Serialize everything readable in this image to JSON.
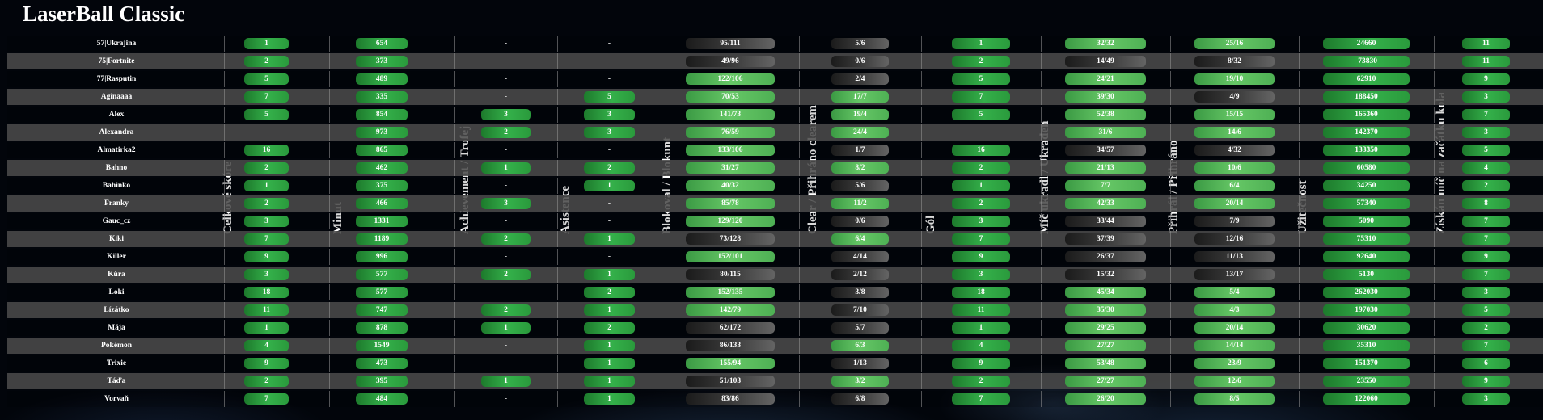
{
  "title": "LaserBall Classic",
  "colors": {
    "green": "#2a9a3c",
    "light_green": "#66c766",
    "dark": "#3a3a3a",
    "row_alt": "#4a4a4a"
  },
  "columns": [
    "Celkové skóre",
    "Minut",
    "Achievement / Trofej",
    "Asistence",
    "Blokoval / Blokunt",
    "Clear / Přihráno clearem",
    "Gól",
    "Míč ukradl / Ukraden",
    "Přihrál / Přihráno",
    "Užitečnost",
    "Získán míč na začátku kola"
  ],
  "rows": [
    {
      "name": "57|Ukrajina",
      "cells": [
        [
          "1",
          "g"
        ],
        [
          "654",
          "g"
        ],
        [
          "-",
          "dash"
        ],
        [
          "-",
          "dash"
        ],
        [
          "95/111",
          "dk"
        ],
        [
          "5/6",
          "dk"
        ],
        [
          "1",
          "g"
        ],
        [
          "32/32",
          "lg"
        ],
        [
          "25/16",
          "lg"
        ],
        [
          "24660",
          "g"
        ],
        [
          "11",
          "g"
        ]
      ]
    },
    {
      "name": "75|Fortnite",
      "cells": [
        [
          "2",
          "g"
        ],
        [
          "373",
          "g"
        ],
        [
          "-",
          "dash"
        ],
        [
          "-",
          "dash"
        ],
        [
          "49/96",
          "dk"
        ],
        [
          "0/6",
          "dk"
        ],
        [
          "2",
          "g"
        ],
        [
          "14/49",
          "dk"
        ],
        [
          "8/32",
          "dk"
        ],
        [
          "-73830",
          "g"
        ],
        [
          "11",
          "g"
        ]
      ]
    },
    {
      "name": "77|Rasputin",
      "cells": [
        [
          "5",
          "g"
        ],
        [
          "489",
          "g"
        ],
        [
          "-",
          "dash"
        ],
        [
          "-",
          "dash"
        ],
        [
          "122/106",
          "lg"
        ],
        [
          "2/4",
          "dk"
        ],
        [
          "5",
          "g"
        ],
        [
          "24/21",
          "lg"
        ],
        [
          "19/10",
          "lg"
        ],
        [
          "62910",
          "g"
        ],
        [
          "9",
          "g"
        ]
      ]
    },
    {
      "name": "Aginaaaa",
      "cells": [
        [
          "7",
          "g"
        ],
        [
          "335",
          "g"
        ],
        [
          "-",
          "dash"
        ],
        [
          "5",
          "g"
        ],
        [
          "70/53",
          "lg"
        ],
        [
          "17/7",
          "lg"
        ],
        [
          "7",
          "g"
        ],
        [
          "39/30",
          "lg"
        ],
        [
          "4/9",
          "dk"
        ],
        [
          "188450",
          "g"
        ],
        [
          "3",
          "g"
        ]
      ]
    },
    {
      "name": "Alex",
      "cells": [
        [
          "5",
          "g"
        ],
        [
          "854",
          "g"
        ],
        [
          "3",
          "g"
        ],
        [
          "3",
          "g"
        ],
        [
          "141/73",
          "lg"
        ],
        [
          "19/4",
          "lg"
        ],
        [
          "5",
          "g"
        ],
        [
          "52/38",
          "lg"
        ],
        [
          "15/15",
          "lg"
        ],
        [
          "165360",
          "g"
        ],
        [
          "7",
          "g"
        ]
      ]
    },
    {
      "name": "Alexandra",
      "cells": [
        [
          "-",
          "dash"
        ],
        [
          "973",
          "g"
        ],
        [
          "2",
          "g"
        ],
        [
          "3",
          "g"
        ],
        [
          "76/59",
          "lg"
        ],
        [
          "24/4",
          "lg"
        ],
        [
          "-",
          "dash"
        ],
        [
          "31/6",
          "lg"
        ],
        [
          "14/6",
          "lg"
        ],
        [
          "142370",
          "g"
        ],
        [
          "3",
          "g"
        ]
      ]
    },
    {
      "name": "Almatirka2",
      "cells": [
        [
          "16",
          "g"
        ],
        [
          "865",
          "g"
        ],
        [
          "-",
          "dash"
        ],
        [
          "-",
          "dash"
        ],
        [
          "133/106",
          "lg"
        ],
        [
          "1/7",
          "dk"
        ],
        [
          "16",
          "g"
        ],
        [
          "34/57",
          "dk"
        ],
        [
          "4/32",
          "dk"
        ],
        [
          "133350",
          "g"
        ],
        [
          "5",
          "g"
        ]
      ]
    },
    {
      "name": "Bahno",
      "cells": [
        [
          "2",
          "g"
        ],
        [
          "462",
          "g"
        ],
        [
          "1",
          "g"
        ],
        [
          "2",
          "g"
        ],
        [
          "31/27",
          "lg"
        ],
        [
          "8/2",
          "lg"
        ],
        [
          "2",
          "g"
        ],
        [
          "21/13",
          "lg"
        ],
        [
          "10/6",
          "lg"
        ],
        [
          "60580",
          "g"
        ],
        [
          "4",
          "g"
        ]
      ]
    },
    {
      "name": "Bahinko",
      "cells": [
        [
          "1",
          "g"
        ],
        [
          "375",
          "g"
        ],
        [
          "-",
          "dash"
        ],
        [
          "1",
          "g"
        ],
        [
          "40/32",
          "lg"
        ],
        [
          "5/6",
          "dk"
        ],
        [
          "1",
          "g"
        ],
        [
          "7/7",
          "lg"
        ],
        [
          "6/4",
          "lg"
        ],
        [
          "34250",
          "g"
        ],
        [
          "2",
          "g"
        ]
      ]
    },
    {
      "name": "Franky",
      "cells": [
        [
          "2",
          "g"
        ],
        [
          "466",
          "g"
        ],
        [
          "3",
          "g"
        ],
        [
          "-",
          "dash"
        ],
        [
          "85/78",
          "lg"
        ],
        [
          "11/2",
          "lg"
        ],
        [
          "2",
          "g"
        ],
        [
          "42/33",
          "lg"
        ],
        [
          "20/14",
          "lg"
        ],
        [
          "57340",
          "g"
        ],
        [
          "8",
          "g"
        ]
      ]
    },
    {
      "name": "Gauc_cz",
      "cells": [
        [
          "3",
          "g"
        ],
        [
          "1331",
          "g"
        ],
        [
          "-",
          "dash"
        ],
        [
          "-",
          "dash"
        ],
        [
          "129/120",
          "lg"
        ],
        [
          "0/6",
          "dk"
        ],
        [
          "3",
          "g"
        ],
        [
          "33/44",
          "dk"
        ],
        [
          "7/9",
          "dk"
        ],
        [
          "5090",
          "g"
        ],
        [
          "7",
          "g"
        ]
      ]
    },
    {
      "name": "Kiki",
      "cells": [
        [
          "7",
          "g"
        ],
        [
          "1189",
          "g"
        ],
        [
          "2",
          "g"
        ],
        [
          "1",
          "g"
        ],
        [
          "73/128",
          "dk"
        ],
        [
          "6/4",
          "lg"
        ],
        [
          "7",
          "g"
        ],
        [
          "37/39",
          "dk"
        ],
        [
          "12/16",
          "dk"
        ],
        [
          "75310",
          "g"
        ],
        [
          "7",
          "g"
        ]
      ]
    },
    {
      "name": "Killer",
      "cells": [
        [
          "9",
          "g"
        ],
        [
          "996",
          "g"
        ],
        [
          "-",
          "dash"
        ],
        [
          "-",
          "dash"
        ],
        [
          "152/101",
          "lg"
        ],
        [
          "4/14",
          "dk"
        ],
        [
          "9",
          "g"
        ],
        [
          "26/37",
          "dk"
        ],
        [
          "11/13",
          "dk"
        ],
        [
          "92640",
          "g"
        ],
        [
          "9",
          "g"
        ]
      ]
    },
    {
      "name": "Kůra",
      "cells": [
        [
          "3",
          "g"
        ],
        [
          "577",
          "g"
        ],
        [
          "2",
          "g"
        ],
        [
          "1",
          "g"
        ],
        [
          "80/115",
          "dk"
        ],
        [
          "2/12",
          "dk"
        ],
        [
          "3",
          "g"
        ],
        [
          "15/32",
          "dk"
        ],
        [
          "13/17",
          "dk"
        ],
        [
          "5130",
          "g"
        ],
        [
          "7",
          "g"
        ]
      ]
    },
    {
      "name": "Loki",
      "cells": [
        [
          "18",
          "g"
        ],
        [
          "577",
          "g"
        ],
        [
          "-",
          "dash"
        ],
        [
          "2",
          "g"
        ],
        [
          "152/135",
          "lg"
        ],
        [
          "3/8",
          "dk"
        ],
        [
          "18",
          "g"
        ],
        [
          "45/34",
          "lg"
        ],
        [
          "5/4",
          "lg"
        ],
        [
          "262030",
          "g"
        ],
        [
          "3",
          "g"
        ]
      ]
    },
    {
      "name": "Lízátko",
      "cells": [
        [
          "11",
          "g"
        ],
        [
          "747",
          "g"
        ],
        [
          "2",
          "g"
        ],
        [
          "1",
          "g"
        ],
        [
          "142/79",
          "lg"
        ],
        [
          "7/10",
          "dk"
        ],
        [
          "11",
          "g"
        ],
        [
          "35/30",
          "lg"
        ],
        [
          "4/3",
          "lg"
        ],
        [
          "197030",
          "g"
        ],
        [
          "5",
          "g"
        ]
      ]
    },
    {
      "name": "Mája",
      "cells": [
        [
          "1",
          "g"
        ],
        [
          "878",
          "g"
        ],
        [
          "1",
          "g"
        ],
        [
          "2",
          "g"
        ],
        [
          "62/172",
          "dk"
        ],
        [
          "5/7",
          "dk"
        ],
        [
          "1",
          "g"
        ],
        [
          "29/25",
          "lg"
        ],
        [
          "20/14",
          "lg"
        ],
        [
          "30620",
          "g"
        ],
        [
          "2",
          "g"
        ]
      ]
    },
    {
      "name": "Pokémon",
      "cells": [
        [
          "4",
          "g"
        ],
        [
          "1549",
          "g"
        ],
        [
          "-",
          "dash"
        ],
        [
          "1",
          "g"
        ],
        [
          "86/133",
          "dk"
        ],
        [
          "6/3",
          "lg"
        ],
        [
          "4",
          "g"
        ],
        [
          "27/27",
          "lg"
        ],
        [
          "14/14",
          "lg"
        ],
        [
          "35310",
          "g"
        ],
        [
          "7",
          "g"
        ]
      ]
    },
    {
      "name": "Trixie",
      "cells": [
        [
          "9",
          "g"
        ],
        [
          "473",
          "g"
        ],
        [
          "-",
          "dash"
        ],
        [
          "1",
          "g"
        ],
        [
          "155/94",
          "lg"
        ],
        [
          "1/13",
          "dk"
        ],
        [
          "9",
          "g"
        ],
        [
          "53/48",
          "lg"
        ],
        [
          "23/9",
          "lg"
        ],
        [
          "151370",
          "g"
        ],
        [
          "6",
          "g"
        ]
      ]
    },
    {
      "name": "Táďa",
      "cells": [
        [
          "2",
          "g"
        ],
        [
          "395",
          "g"
        ],
        [
          "1",
          "g"
        ],
        [
          "1",
          "g"
        ],
        [
          "51/103",
          "dk"
        ],
        [
          "3/2",
          "lg"
        ],
        [
          "2",
          "g"
        ],
        [
          "27/27",
          "lg"
        ],
        [
          "12/6",
          "lg"
        ],
        [
          "23550",
          "g"
        ],
        [
          "9",
          "g"
        ]
      ]
    },
    {
      "name": "Vorvaň",
      "cells": [
        [
          "7",
          "g"
        ],
        [
          "484",
          "g"
        ],
        [
          "-",
          "dash"
        ],
        [
          "1",
          "g"
        ],
        [
          "83/86",
          "dk"
        ],
        [
          "6/8",
          "dk"
        ],
        [
          "7",
          "g"
        ],
        [
          "26/20",
          "lg"
        ],
        [
          "8/5",
          "lg"
        ],
        [
          "122060",
          "g"
        ],
        [
          "3",
          "g"
        ]
      ]
    }
  ]
}
